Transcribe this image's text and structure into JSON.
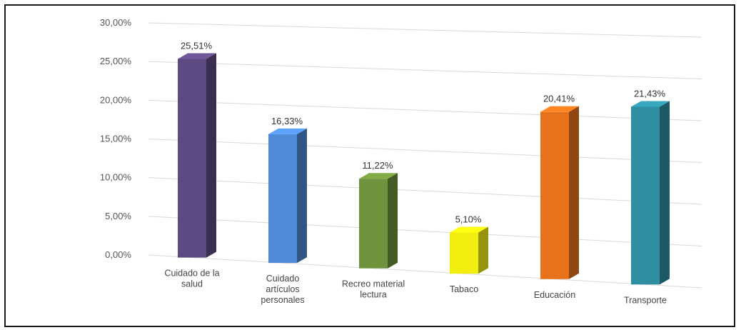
{
  "chart_data": {
    "type": "bar",
    "title": "",
    "xlabel": "",
    "ylabel": "",
    "ylim": [
      0,
      30
    ],
    "grid": true,
    "legend": "none",
    "y_ticks": [
      "0,00%",
      "5,00%",
      "10,00%",
      "15,00%",
      "20,00%",
      "25,00%",
      "30,00%"
    ],
    "categories": [
      [
        "Cuidado de la",
        "salud"
      ],
      [
        "Cuidado",
        "artículos",
        "personales"
      ],
      [
        "Recreo material",
        "lectura"
      ],
      [
        "Tabaco"
      ],
      [
        "Educación"
      ],
      [
        "Transporte"
      ]
    ],
    "values": [
      25.51,
      16.33,
      11.22,
      5.1,
      20.41,
      21.43
    ],
    "data_labels": [
      "25,51%",
      "16,33%",
      "11,22%",
      "5,10%",
      "20,41%",
      "21,43%"
    ],
    "colors": [
      "#5e4a82",
      "#4f8ad6",
      "#6f923c",
      "#f2ee10",
      "#e8711c",
      "#2f8ea1"
    ]
  }
}
